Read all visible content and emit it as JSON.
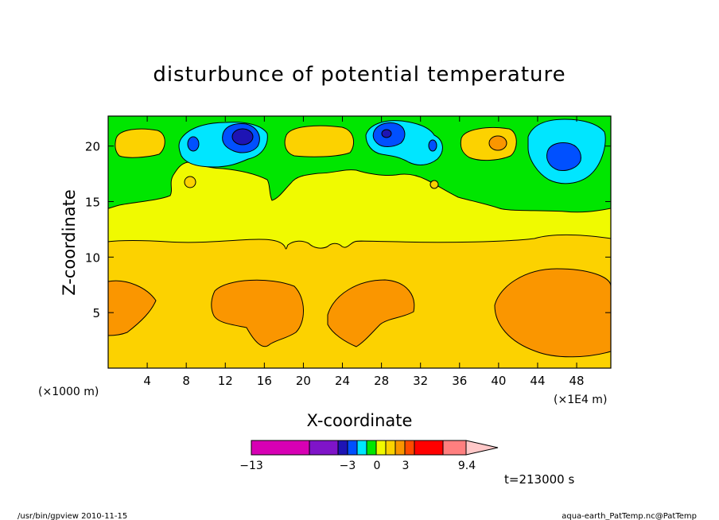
{
  "chart_data": {
    "type": "heatmap",
    "title": "disturbunce of potential temperature",
    "xlabel": "X-coordinate",
    "ylabel": "Z-coordinate",
    "x_unit_left": "(×1000 m)",
    "x_unit_right": "(×1E4 m)",
    "x_ticks": [
      4,
      8,
      12,
      16,
      20,
      24,
      28,
      32,
      36,
      40,
      44,
      48
    ],
    "y_ticks": [
      5,
      10,
      15,
      20
    ],
    "xlim": [
      0,
      51.5
    ],
    "ylim": [
      0,
      22.7
    ],
    "levels": [
      {
        "name": "lvl-0-to-1",
        "color": "#f0fa00"
      },
      {
        "name": "lvl-1-to-2",
        "color": "#fcd200"
      },
      {
        "name": "lvl-2-to-3",
        "color": "#fa9600"
      },
      {
        "name": "lvl-n1-to-0",
        "color": "#00e600"
      },
      {
        "name": "lvl-n2-to-n1",
        "color": "#00e6ff"
      },
      {
        "name": "lvl-n3-to-n2",
        "color": "#0050ff"
      },
      {
        "name": "lvl-below-n3",
        "color": "#1e14b4"
      }
    ],
    "colorbar": {
      "colors": [
        "#d700b4",
        "#7f14c8",
        "#1e14b4",
        "#0050ff",
        "#00e6ff",
        "#00e600",
        "#f0fa00",
        "#fcd200",
        "#fa9600",
        "#ff4b00",
        "#ff0000",
        "#ff7f7f",
        "#ffc8c8"
      ],
      "labels": [
        "−13",
        "−3",
        "0",
        "3",
        "9.4"
      ]
    },
    "time_label": "t=213000 s"
  },
  "footer": {
    "left": "/usr/bin/gpview   2010-11-15",
    "right": "aqua-earth_PatTemp.nc@PatTemp"
  }
}
